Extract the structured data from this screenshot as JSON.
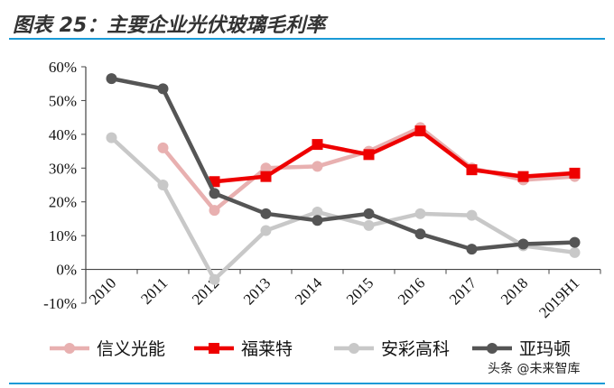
{
  "title": "图表 25：主要企业光伏玻璃毛利率",
  "watermark": "头条 @未来智库",
  "chart_data": {
    "type": "line",
    "title": "图表 25：主要企业光伏玻璃毛利率",
    "xlabel": "",
    "ylabel": "",
    "categories": [
      "2010",
      "2011",
      "2012",
      "2013",
      "2014",
      "2015",
      "2016",
      "2017",
      "2018",
      "2019H1"
    ],
    "ylim": [
      -10,
      60
    ],
    "yticks": [
      "-10%",
      "0%",
      "10%",
      "20%",
      "30%",
      "40%",
      "50%",
      "60%"
    ],
    "legend_position": "bottom",
    "grid": false,
    "series": [
      {
        "name": "信义光能",
        "color": "#e8b0b0",
        "marker": "circle",
        "values": [
          null,
          36,
          17.5,
          30,
          30.5,
          35,
          42,
          30,
          26.5,
          27.5
        ]
      },
      {
        "name": "福莱特",
        "color": "#ee0000",
        "marker": "square",
        "values": [
          null,
          null,
          26,
          27.5,
          37,
          34,
          41,
          29.5,
          27.5,
          28.5
        ]
      },
      {
        "name": "安彩高科",
        "color": "#c8c8c8",
        "marker": "circle",
        "values": [
          39,
          25,
          -3,
          11.5,
          17,
          13,
          16.5,
          16,
          7,
          5
        ]
      },
      {
        "name": "亚玛顿",
        "color": "#555555",
        "marker": "circle",
        "values": [
          56.5,
          53.5,
          22.5,
          16.5,
          14.5,
          16.5,
          10.5,
          6,
          7.5,
          8
        ]
      }
    ]
  }
}
